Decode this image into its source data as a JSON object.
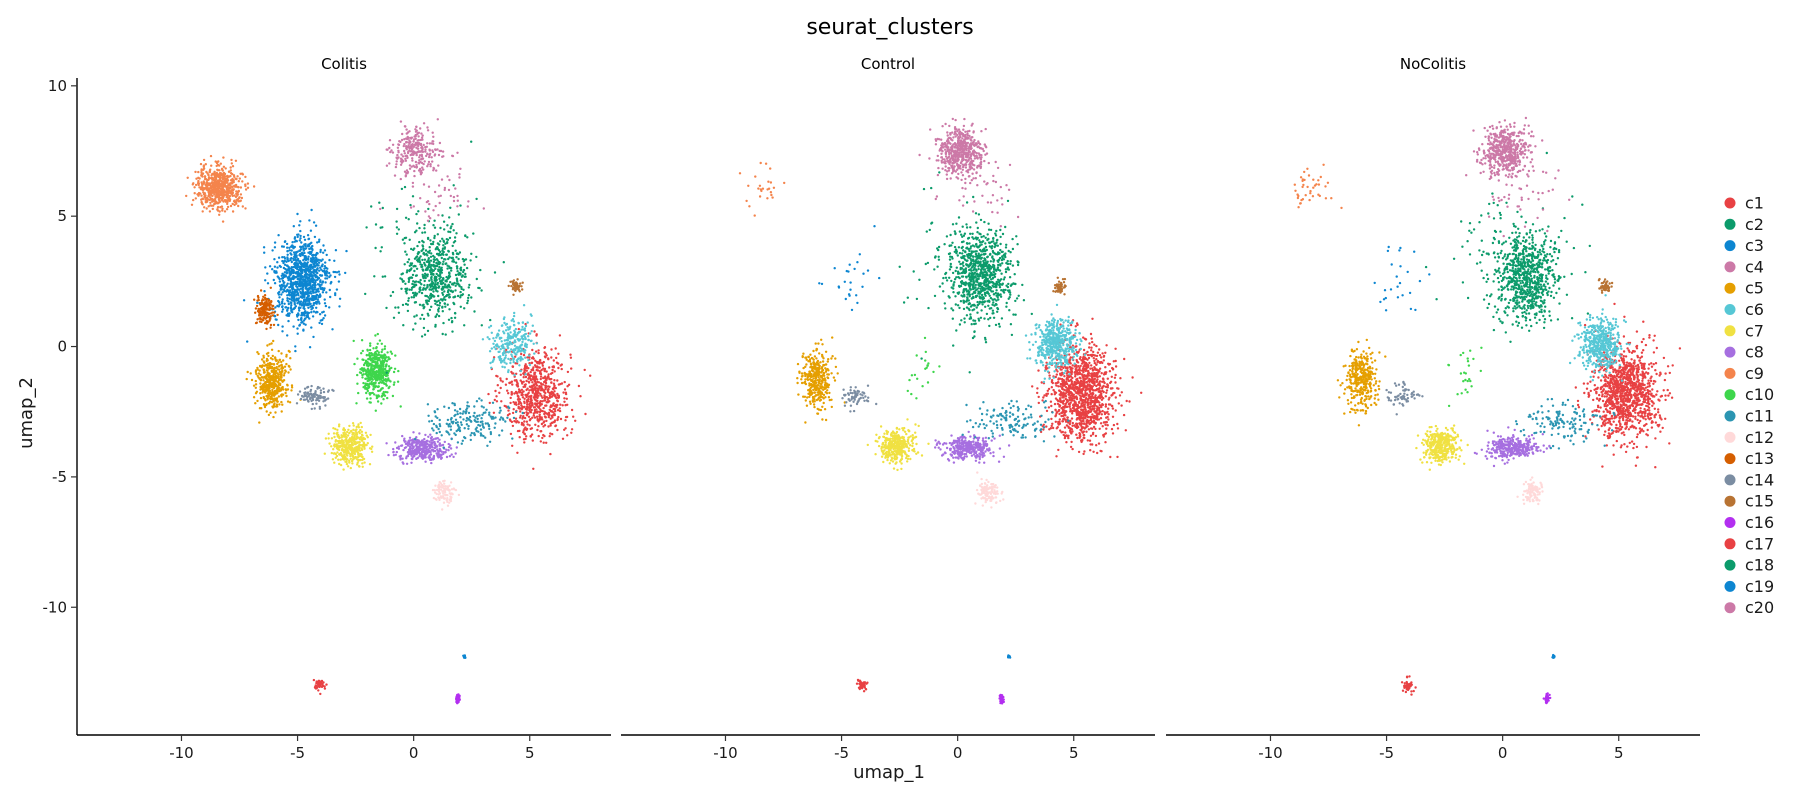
{
  "chart_data": {
    "type": "scatter",
    "title": "seurat_clusters",
    "xlabel": "umap_1",
    "ylabel": "umap_2",
    "xlim": [
      -14.5,
      8.5
    ],
    "ylim": [
      -14.9,
      10.3
    ],
    "x_ticks": [
      -10,
      -5,
      0,
      5
    ],
    "y_ticks": [
      10,
      5,
      0,
      -5,
      -10
    ],
    "panels": [
      "Colitis",
      "Control",
      "NoColitis"
    ],
    "legend_position": "right",
    "legend": [
      {
        "label": "c1",
        "color": "#e84143"
      },
      {
        "label": "c2",
        "color": "#0c9b6b"
      },
      {
        "label": "c3",
        "color": "#0d86d1"
      },
      {
        "label": "c4",
        "color": "#cc79a7"
      },
      {
        "label": "c5",
        "color": "#e59f01"
      },
      {
        "label": "c6",
        "color": "#56c7d5"
      },
      {
        "label": "c7",
        "color": "#f0e142"
      },
      {
        "label": "c8",
        "color": "#a66fe0"
      },
      {
        "label": "c9",
        "color": "#f4844c"
      },
      {
        "label": "c10",
        "color": "#3ed64c"
      },
      {
        "label": "c11",
        "color": "#2b95b2"
      },
      {
        "label": "c12",
        "color": "#ffd9d9"
      },
      {
        "label": "c13",
        "color": "#d55e00"
      },
      {
        "label": "c14",
        "color": "#7b8da2"
      },
      {
        "label": "c15",
        "color": "#b87333"
      },
      {
        "label": "c16",
        "color": "#b32ff0"
      },
      {
        "label": "c17",
        "color": "#e84143"
      },
      {
        "label": "c18",
        "color": "#0c9b6b"
      },
      {
        "label": "c19",
        "color": "#0d86d1"
      },
      {
        "label": "c20",
        "color": "#cc79a7"
      }
    ],
    "clusters": [
      {
        "id": "c1",
        "cx": 5.3,
        "cy": -1.8,
        "sx": 1.3,
        "sy": 1.6,
        "weights": [
          700,
          1200,
          1100
        ]
      },
      {
        "id": "c2",
        "cx": 1.0,
        "cy": 2.7,
        "sx": 1.2,
        "sy": 1.5,
        "weights": [
          500,
          750,
          700
        ]
      },
      {
        "id": "c3",
        "cx": -4.8,
        "cy": 2.5,
        "sx": 1.1,
        "sy": 1.5,
        "weights": [
          1000,
          25,
          25
        ]
      },
      {
        "id": "c4",
        "cx": 0.1,
        "cy": 7.5,
        "sx": 0.9,
        "sy": 0.8,
        "weights": [
          250,
          500,
          500
        ]
      },
      {
        "id": "c5",
        "cx": -6.1,
        "cy": -1.3,
        "sx": 0.6,
        "sy": 1.0,
        "weights": [
          450,
          350,
          350
        ]
      },
      {
        "id": "c6",
        "cx": 4.2,
        "cy": 0.1,
        "sx": 0.8,
        "sy": 0.9,
        "weights": [
          250,
          450,
          450
        ]
      },
      {
        "id": "c7",
        "cx": -2.7,
        "cy": -3.8,
        "sx": 0.7,
        "sy": 0.6,
        "weights": [
          400,
          350,
          350
        ]
      },
      {
        "id": "c8",
        "cx": 0.4,
        "cy": -3.9,
        "sx": 1.0,
        "sy": 0.4,
        "weights": [
          350,
          300,
          300
        ]
      },
      {
        "id": "c9",
        "cx": -8.4,
        "cy": 6.1,
        "sx": 0.9,
        "sy": 0.7,
        "weights": [
          600,
          25,
          40
        ]
      },
      {
        "id": "c10",
        "cx": -1.6,
        "cy": -1.0,
        "sx": 0.6,
        "sy": 0.9,
        "weights": [
          450,
          20,
          25
        ]
      },
      {
        "id": "c11",
        "cx": 2.4,
        "cy": -2.9,
        "sx": 1.6,
        "sy": 0.7,
        "weights": [
          180,
          130,
          130
        ]
      },
      {
        "id": "c12",
        "cx": 1.3,
        "cy": -5.6,
        "sx": 0.4,
        "sy": 0.4,
        "weights": [
          90,
          120,
          100
        ]
      },
      {
        "id": "c13",
        "cx": -6.4,
        "cy": 1.4,
        "sx": 0.35,
        "sy": 0.5,
        "weights": [
          160,
          0,
          0
        ]
      },
      {
        "id": "c14",
        "cx": -4.3,
        "cy": -1.9,
        "sx": 0.6,
        "sy": 0.4,
        "weights": [
          90,
          60,
          60
        ]
      },
      {
        "id": "c15",
        "cx": 4.4,
        "cy": 2.3,
        "sx": 0.22,
        "sy": 0.22,
        "weights": [
          50,
          50,
          50
        ]
      },
      {
        "id": "c16",
        "cx": 1.9,
        "cy": -13.5,
        "sx": 0.08,
        "sy": 0.15,
        "weights": [
          45,
          45,
          45
        ]
      },
      {
        "id": "c17",
        "cx": -4.1,
        "cy": -13.0,
        "sx": 0.22,
        "sy": 0.22,
        "weights": [
          45,
          45,
          45
        ]
      },
      {
        "id": "c18",
        "cx": 0.5,
        "cy": 3.2,
        "sx": 2.4,
        "sy": 2.4,
        "weights": [
          150,
          100,
          110
        ]
      },
      {
        "id": "c19",
        "cx": 2.2,
        "cy": -11.9,
        "sx": 0.05,
        "sy": 0.05,
        "weights": [
          12,
          12,
          12
        ]
      },
      {
        "id": "c20",
        "cx": 0.9,
        "cy": 5.8,
        "sx": 1.6,
        "sy": 1.2,
        "weights": [
          50,
          40,
          40
        ]
      }
    ]
  }
}
